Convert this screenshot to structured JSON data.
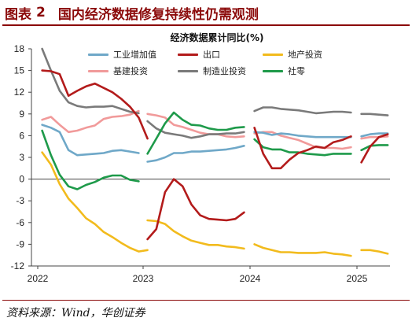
{
  "header": {
    "label": "图表",
    "number": "2",
    "title": "国内经济数据修复持续性仍需观测"
  },
  "source": "资料来源：Wind，华创证券",
  "chart_data": {
    "type": "line",
    "title": "经济数据累计同比(%)",
    "xlabel": "",
    "ylabel": "",
    "ylim": [
      -12,
      18
    ],
    "yticks": [
      "18",
      "15",
      "12",
      "9",
      "6",
      "3",
      "0",
      "-3",
      "-6",
      "-9",
      "-12"
    ],
    "xticks": [
      "2022",
      "2023",
      "2024",
      "2025"
    ],
    "legend_position": "top",
    "grid": false,
    "series": [
      {
        "name": "工业增加值",
        "color": "#6fa8c8",
        "segments": [
          [
            [
              "2022-01",
              7.5
            ],
            [
              "2022-02",
              7.1
            ],
            [
              "2022-03",
              6.5
            ],
            [
              "2022-04",
              4.0
            ],
            [
              "2022-05",
              3.3
            ],
            [
              "2022-06",
              3.4
            ],
            [
              "2022-07",
              3.5
            ],
            [
              "2022-08",
              3.6
            ],
            [
              "2022-09",
              3.9
            ],
            [
              "2022-10",
              4.0
            ],
            [
              "2022-11",
              3.8
            ],
            [
              "2022-12",
              3.6
            ]
          ],
          [
            [
              "2023-01",
              2.4
            ],
            [
              "2023-02",
              2.6
            ],
            [
              "2023-03",
              3.0
            ],
            [
              "2023-04",
              3.6
            ],
            [
              "2023-05",
              3.6
            ],
            [
              "2023-06",
              3.8
            ],
            [
              "2023-07",
              3.8
            ],
            [
              "2023-08",
              3.9
            ],
            [
              "2023-09",
              4.0
            ],
            [
              "2023-10",
              4.1
            ],
            [
              "2023-11",
              4.3
            ],
            [
              "2023-12",
              4.6
            ]
          ],
          [
            [
              "2024-01",
              6.5
            ],
            [
              "2024-02",
              6.4
            ],
            [
              "2024-03",
              6.1
            ],
            [
              "2024-04",
              6.3
            ],
            [
              "2024-05",
              6.2
            ],
            [
              "2024-06",
              6.0
            ],
            [
              "2024-07",
              5.9
            ],
            [
              "2024-08",
              5.8
            ],
            [
              "2024-09",
              5.8
            ],
            [
              "2024-10",
              5.8
            ],
            [
              "2024-11",
              5.8
            ],
            [
              "2024-12",
              5.8
            ]
          ],
          [
            [
              "2025-01",
              5.9
            ],
            [
              "2025-02",
              6.2
            ],
            [
              "2025-03",
              6.3
            ],
            [
              "2025-04",
              6.3
            ]
          ]
        ]
      },
      {
        "name": "出口",
        "color": "#b31b1b",
        "segments": [
          [
            [
              "2022-01",
              15.0
            ],
            [
              "2022-02",
              14.9
            ],
            [
              "2022-03",
              14.5
            ],
            [
              "2022-04",
              11.5
            ],
            [
              "2022-05",
              12.2
            ],
            [
              "2022-06",
              12.8
            ],
            [
              "2022-07",
              13.2
            ],
            [
              "2022-08",
              12.6
            ],
            [
              "2022-09",
              12.0
            ],
            [
              "2022-10",
              11.1
            ],
            [
              "2022-11",
              10.0
            ],
            [
              "2022-12",
              8.5
            ],
            [
              "2023-01",
              5.6
            ]
          ],
          [
            [
              "2023-01",
              -8.3
            ],
            [
              "2023-02",
              -6.9
            ],
            [
              "2023-03",
              -1.8
            ],
            [
              "2023-04",
              0.0
            ],
            [
              "2023-05",
              -1.0
            ],
            [
              "2023-06",
              -3.5
            ],
            [
              "2023-07",
              -5.0
            ],
            [
              "2023-08",
              -5.5
            ],
            [
              "2023-09",
              -5.6
            ],
            [
              "2023-10",
              -5.7
            ],
            [
              "2023-11",
              -5.5
            ],
            [
              "2023-12",
              -4.6
            ]
          ],
          [
            [
              "2024-01",
              7.1
            ],
            [
              "2024-02",
              3.5
            ],
            [
              "2024-03",
              1.5
            ],
            [
              "2024-04",
              1.5
            ],
            [
              "2024-05",
              2.7
            ],
            [
              "2024-06",
              3.6
            ],
            [
              "2024-07",
              4.0
            ],
            [
              "2024-08",
              4.5
            ],
            [
              "2024-09",
              4.3
            ],
            [
              "2024-10",
              5.1
            ],
            [
              "2024-11",
              5.4
            ],
            [
              "2024-12",
              5.9
            ]
          ],
          [
            [
              "2025-01",
              2.3
            ],
            [
              "2025-02",
              4.5
            ],
            [
              "2025-03",
              5.8
            ],
            [
              "2025-04",
              6.2
            ]
          ]
        ]
      },
      {
        "name": "地产投资",
        "color": "#f2bb1d",
        "segments": [
          [
            [
              "2022-01",
              3.7
            ],
            [
              "2022-02",
              2.0
            ],
            [
              "2022-03",
              -0.7
            ],
            [
              "2022-04",
              -2.7
            ],
            [
              "2022-05",
              -4.0
            ],
            [
              "2022-06",
              -5.4
            ],
            [
              "2022-07",
              -6.2
            ],
            [
              "2022-08",
              -7.3
            ],
            [
              "2022-09",
              -8.0
            ],
            [
              "2022-10",
              -8.8
            ],
            [
              "2022-11",
              -9.5
            ],
            [
              "2022-12",
              -10.0
            ],
            [
              "2023-01",
              -9.8
            ]
          ],
          [
            [
              "2023-01",
              -5.7
            ],
            [
              "2023-02",
              -5.8
            ],
            [
              "2023-03",
              -6.2
            ],
            [
              "2023-04",
              -7.2
            ],
            [
              "2023-05",
              -7.9
            ],
            [
              "2023-06",
              -8.5
            ],
            [
              "2023-07",
              -8.8
            ],
            [
              "2023-08",
              -9.1
            ],
            [
              "2023-09",
              -9.1
            ],
            [
              "2023-10",
              -9.3
            ],
            [
              "2023-11",
              -9.4
            ],
            [
              "2023-12",
              -9.6
            ]
          ],
          [
            [
              "2024-01",
              -9.0
            ],
            [
              "2024-02",
              -9.5
            ],
            [
              "2024-03",
              -9.8
            ],
            [
              "2024-04",
              -10.1
            ],
            [
              "2024-05",
              -10.1
            ],
            [
              "2024-06",
              -10.2
            ],
            [
              "2024-07",
              -10.2
            ],
            [
              "2024-08",
              -10.2
            ],
            [
              "2024-09",
              -10.1
            ],
            [
              "2024-10",
              -10.3
            ],
            [
              "2024-11",
              -10.4
            ],
            [
              "2024-12",
              -10.6
            ]
          ],
          [
            [
              "2025-01",
              -9.8
            ],
            [
              "2025-02",
              -9.8
            ],
            [
              "2025-03",
              -10.0
            ],
            [
              "2025-04",
              -10.3
            ]
          ]
        ]
      },
      {
        "name": "基建投资",
        "color": "#f19a9a",
        "segments": [
          [
            [
              "2022-01",
              8.2
            ],
            [
              "2022-02",
              8.6
            ],
            [
              "2022-03",
              7.5
            ],
            [
              "2022-04",
              6.5
            ],
            [
              "2022-05",
              6.7
            ],
            [
              "2022-06",
              7.1
            ],
            [
              "2022-07",
              7.4
            ],
            [
              "2022-08",
              8.3
            ],
            [
              "2022-09",
              8.6
            ],
            [
              "2022-10",
              8.7
            ],
            [
              "2022-11",
              8.9
            ],
            [
              "2022-12",
              9.4
            ]
          ],
          [
            [
              "2023-01",
              9.0
            ],
            [
              "2023-02",
              8.8
            ],
            [
              "2023-03",
              8.5
            ],
            [
              "2023-04",
              7.5
            ],
            [
              "2023-05",
              7.2
            ],
            [
              "2023-06",
              6.8
            ],
            [
              "2023-07",
              6.4
            ],
            [
              "2023-08",
              6.2
            ],
            [
              "2023-09",
              6.2
            ],
            [
              "2023-10",
              5.9
            ],
            [
              "2023-11",
              5.8
            ],
            [
              "2023-12",
              5.9
            ]
          ],
          [
            [
              "2024-01",
              6.3
            ],
            [
              "2024-02",
              6.5
            ],
            [
              "2024-03",
              6.5
            ],
            [
              "2024-04",
              6.0
            ],
            [
              "2024-05",
              5.7
            ],
            [
              "2024-06",
              5.4
            ],
            [
              "2024-07",
              4.9
            ],
            [
              "2024-08",
              4.4
            ],
            [
              "2024-09",
              4.3
            ],
            [
              "2024-10",
              4.3
            ],
            [
              "2024-11",
              4.2
            ],
            [
              "2024-12",
              4.4
            ]
          ],
          [
            [
              "2025-01",
              5.6
            ],
            [
              "2025-02",
              5.8
            ],
            [
              "2025-03",
              5.8
            ],
            [
              "2025-04",
              5.9
            ]
          ]
        ]
      },
      {
        "name": "制造业投资",
        "color": "#7a7a7a",
        "segments": [
          [
            [
              "2022-01",
              18.0
            ],
            [
              "2022-02",
              15.0
            ],
            [
              "2022-03",
              12.2
            ],
            [
              "2022-04",
              10.6
            ],
            [
              "2022-05",
              10.1
            ],
            [
              "2022-06",
              9.9
            ],
            [
              "2022-07",
              10.0
            ],
            [
              "2022-08",
              10.0
            ],
            [
              "2022-09",
              10.1
            ],
            [
              "2022-10",
              9.7
            ],
            [
              "2022-11",
              9.3
            ],
            [
              "2022-12",
              9.1
            ]
          ],
          [
            [
              "2023-01",
              8.0
            ],
            [
              "2023-02",
              7.0
            ],
            [
              "2023-03",
              6.4
            ],
            [
              "2023-04",
              6.2
            ],
            [
              "2023-05",
              6.0
            ],
            [
              "2023-06",
              5.7
            ],
            [
              "2023-07",
              5.9
            ],
            [
              "2023-08",
              6.2
            ],
            [
              "2023-09",
              6.2
            ],
            [
              "2023-10",
              6.3
            ],
            [
              "2023-11",
              6.3
            ],
            [
              "2023-12",
              6.5
            ]
          ],
          [
            [
              "2024-01",
              9.4
            ],
            [
              "2024-02",
              9.9
            ],
            [
              "2024-03",
              9.9
            ],
            [
              "2024-04",
              9.7
            ],
            [
              "2024-05",
              9.6
            ],
            [
              "2024-06",
              9.5
            ],
            [
              "2024-07",
              9.3
            ],
            [
              "2024-08",
              9.1
            ],
            [
              "2024-09",
              9.2
            ],
            [
              "2024-10",
              9.3
            ],
            [
              "2024-11",
              9.3
            ],
            [
              "2024-12",
              9.2
            ]
          ],
          [
            [
              "2025-01",
              9.0
            ],
            [
              "2025-02",
              9.0
            ],
            [
              "2025-03",
              8.9
            ],
            [
              "2025-04",
              8.8
            ]
          ]
        ]
      },
      {
        "name": "社零",
        "color": "#1e9a4a",
        "segments": [
          [
            [
              "2022-01",
              6.7
            ],
            [
              "2022-02",
              3.3
            ],
            [
              "2022-03",
              0.6
            ],
            [
              "2022-04",
              -1.0
            ],
            [
              "2022-05",
              -1.4
            ],
            [
              "2022-06",
              -0.8
            ],
            [
              "2022-07",
              -0.4
            ],
            [
              "2022-08",
              0.2
            ],
            [
              "2022-09",
              0.5
            ],
            [
              "2022-10",
              0.5
            ],
            [
              "2022-11",
              -0.1
            ],
            [
              "2022-12",
              -0.3
            ]
          ],
          [
            [
              "2023-01",
              3.5
            ],
            [
              "2023-02",
              5.6
            ],
            [
              "2023-03",
              7.7
            ],
            [
              "2023-04",
              9.2
            ],
            [
              "2023-05",
              8.2
            ],
            [
              "2023-06",
              7.5
            ],
            [
              "2023-07",
              7.4
            ],
            [
              "2023-08",
              7.0
            ],
            [
              "2023-09",
              6.8
            ],
            [
              "2023-10",
              6.8
            ],
            [
              "2023-11",
              7.1
            ],
            [
              "2023-12",
              7.2
            ]
          ],
          [
            [
              "2024-01",
              5.5
            ],
            [
              "2024-02",
              4.4
            ],
            [
              "2024-03",
              4.1
            ],
            [
              "2024-04",
              4.1
            ],
            [
              "2024-05",
              3.7
            ],
            [
              "2024-06",
              3.7
            ],
            [
              "2024-07",
              3.5
            ],
            [
              "2024-08",
              3.4
            ],
            [
              "2024-09",
              3.3
            ],
            [
              "2024-10",
              3.5
            ],
            [
              "2024-11",
              3.5
            ],
            [
              "2024-12",
              3.5
            ]
          ],
          [
            [
              "2025-01",
              4.0
            ],
            [
              "2025-02",
              4.6
            ],
            [
              "2025-03",
              4.7
            ],
            [
              "2025-04",
              4.7
            ]
          ]
        ]
      }
    ]
  }
}
